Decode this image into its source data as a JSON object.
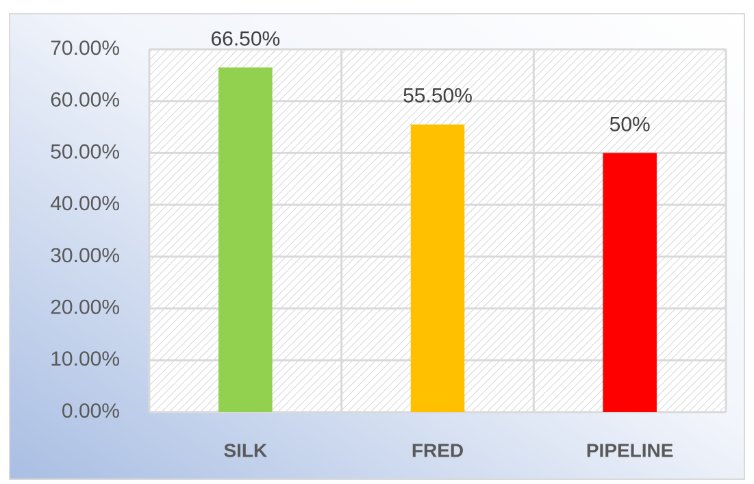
{
  "chart_data": {
    "type": "bar",
    "categories": [
      "SILK",
      "FRED",
      "PIPELINE"
    ],
    "values": [
      66.5,
      55.5,
      50
    ],
    "value_labels": [
      "66.50%",
      "55.50%",
      "50%"
    ],
    "colors": [
      "#92d050",
      "#ffc000",
      "#ff0000"
    ],
    "ylim": [
      0,
      70
    ],
    "yticks": [
      {
        "value": 0,
        "label": "0.00%"
      },
      {
        "value": 10,
        "label": "10.00%"
      },
      {
        "value": 20,
        "label": "20.00%"
      },
      {
        "value": 30,
        "label": "30.00%"
      },
      {
        "value": 40,
        "label": "40.00%"
      },
      {
        "value": 50,
        "label": "50.00%"
      },
      {
        "value": 60,
        "label": "60.00%"
      },
      {
        "value": 70,
        "label": "70.00%"
      }
    ],
    "grid": true
  }
}
